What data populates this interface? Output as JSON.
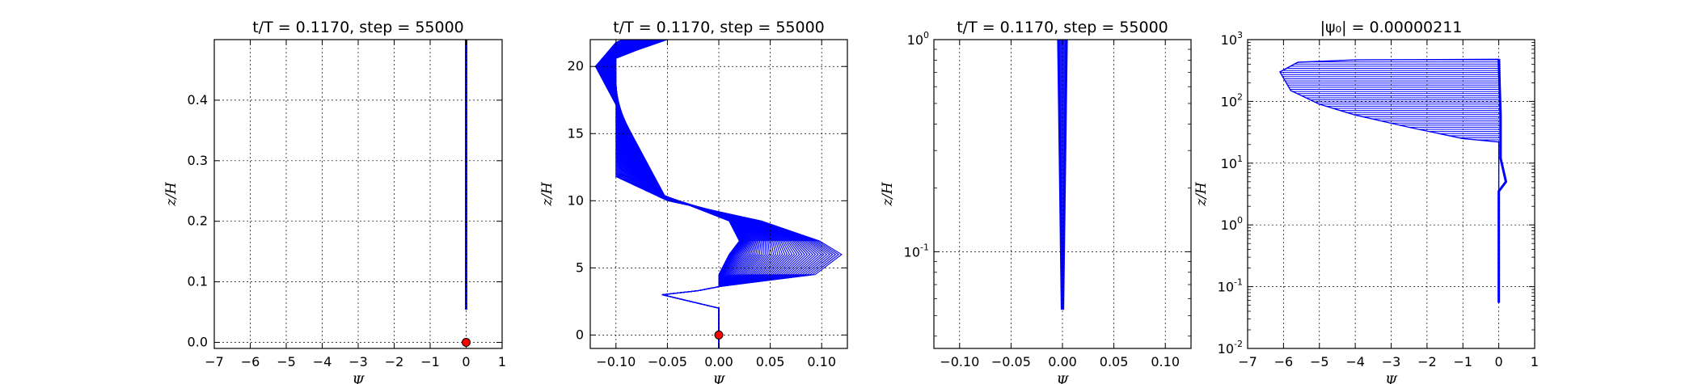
{
  "figure": {
    "background": "#ffffff",
    "line_color": "#0000ff",
    "marker_color": "#ff0000"
  },
  "chart_data": [
    {
      "type": "line",
      "title": "t/T = 0.1170, step = 55000",
      "xlabel": "Ψ",
      "ylabel": "z/H",
      "xlim": [
        -7,
        1
      ],
      "ylim": [
        -0.01,
        0.5
      ],
      "yscale": "linear",
      "grid": true,
      "xticks": [
        -7,
        -6,
        -5,
        -4,
        -3,
        -2,
        -1,
        0,
        1
      ],
      "xtick_labels": [
        "−7",
        "−6",
        "−5",
        "−4",
        "−3",
        "−2",
        "−1",
        "0",
        "1"
      ],
      "yticks": [
        0.0,
        0.1,
        0.2,
        0.3,
        0.4
      ],
      "ytick_labels": [
        "0.0",
        "0.1",
        "0.2",
        "0.3",
        "0.4"
      ],
      "series": [
        {
          "x": [
            0,
            0
          ],
          "y": [
            0.054,
            0.5
          ]
        }
      ],
      "markers": [
        {
          "x": 0,
          "y": 0
        }
      ]
    },
    {
      "type": "line",
      "title": "t/T = 0.1170, step = 55000",
      "xlabel": "Ψ",
      "ylabel": "z/H",
      "xlim": [
        -0.125,
        0.125
      ],
      "ylim": [
        -1,
        22
      ],
      "yscale": "linear",
      "grid": true,
      "xticks": [
        -0.1,
        -0.05,
        0.0,
        0.05,
        0.1
      ],
      "xtick_labels": [
        "−0.10",
        "−0.05",
        "0.00",
        "0.05",
        "0.10"
      ],
      "yticks": [
        0,
        5,
        10,
        15,
        20
      ],
      "ytick_labels": [
        "0",
        "5",
        "10",
        "15",
        "20"
      ],
      "curve_family": {
        "count": 60,
        "profile_points": [
          [
            0.0,
            -1
          ],
          [
            0.0,
            2.0
          ],
          [
            -0.055,
            3.0
          ],
          [
            -0.02,
            3.3
          ],
          [
            0.0,
            3.6
          ],
          [
            0.0,
            4.5
          ],
          [
            0.01,
            6.0
          ],
          [
            0.02,
            7.0
          ],
          [
            0.01,
            8.5
          ],
          [
            -0.1,
            10.0
          ],
          [
            -0.1,
            20.0
          ],
          [
            -0.06,
            21.2
          ],
          [
            -0.03,
            22.0
          ]
        ],
        "spread": {
          "upper_max_shift": -0.02,
          "upper_min_shift": 0.05,
          "lower_max_shift": 0.125
        }
      },
      "markers": [
        {
          "x": 0,
          "y": 0
        }
      ]
    },
    {
      "type": "line",
      "title": "t/T = 0.1170, step = 55000",
      "xlabel": "Ψ",
      "ylabel": "z/H",
      "xlim": [
        -0.125,
        0.125
      ],
      "ylim": [
        0.035,
        1.0
      ],
      "yscale": "log",
      "grid": true,
      "xticks": [
        -0.1,
        -0.05,
        0.0,
        0.05,
        0.1
      ],
      "xtick_labels": [
        "−0.10",
        "−0.05",
        "0.00",
        "0.05",
        "0.10"
      ],
      "yticks": [
        0.1,
        1
      ],
      "ytick_labels": [
        {
          "base": "10",
          "exp": "-1"
        },
        {
          "base": "10",
          "exp": "0"
        }
      ],
      "series": [
        {
          "x": [
            -0.004,
            -0.0005,
            0.0005,
            0.004
          ],
          "y": [
            1.0,
            0.054,
            0.054,
            1.0
          ]
        }
      ]
    },
    {
      "type": "line",
      "title": "|ψ₀| = 0.00000211",
      "xlabel": "Ψ",
      "ylabel": "z/H",
      "xlim": [
        -7,
        1
      ],
      "ylim": [
        0.01,
        1000
      ],
      "yscale": "log",
      "grid": true,
      "xticks": [
        -7,
        -6,
        -5,
        -4,
        -3,
        -2,
        -1,
        0,
        1
      ],
      "xtick_labels": [
        "−7",
        "−6",
        "−5",
        "−4",
        "−3",
        "−2",
        "−1",
        "0",
        "1"
      ],
      "yticks": [
        0.01,
        0.1,
        1,
        10,
        100,
        1000
      ],
      "ytick_labels": [
        {
          "base": "10",
          "exp": "-2"
        },
        {
          "base": "10",
          "exp": "-1"
        },
        {
          "base": "10",
          "exp": "0"
        },
        {
          "base": "10",
          "exp": "1"
        },
        {
          "base": "10",
          "exp": "2"
        },
        {
          "base": "10",
          "exp": "3"
        }
      ],
      "envelope": {
        "count": 40,
        "left_edge": [
          [
            0,
            480
          ],
          [
            -4.0,
            470
          ],
          [
            -5.6,
            430
          ],
          [
            -6.1,
            300
          ],
          [
            -5.8,
            150
          ],
          [
            -5.0,
            90
          ],
          [
            -4.0,
            60
          ],
          [
            -2.5,
            38
          ],
          [
            -1.0,
            25
          ],
          [
            0,
            22
          ]
        ],
        "right_edge": [
          [
            0,
            480
          ],
          [
            0.05,
            60
          ],
          [
            0.05,
            12
          ],
          [
            0.2,
            5.0
          ],
          [
            0.0,
            3.5
          ],
          [
            0.0,
            0.055
          ]
        ]
      }
    }
  ]
}
